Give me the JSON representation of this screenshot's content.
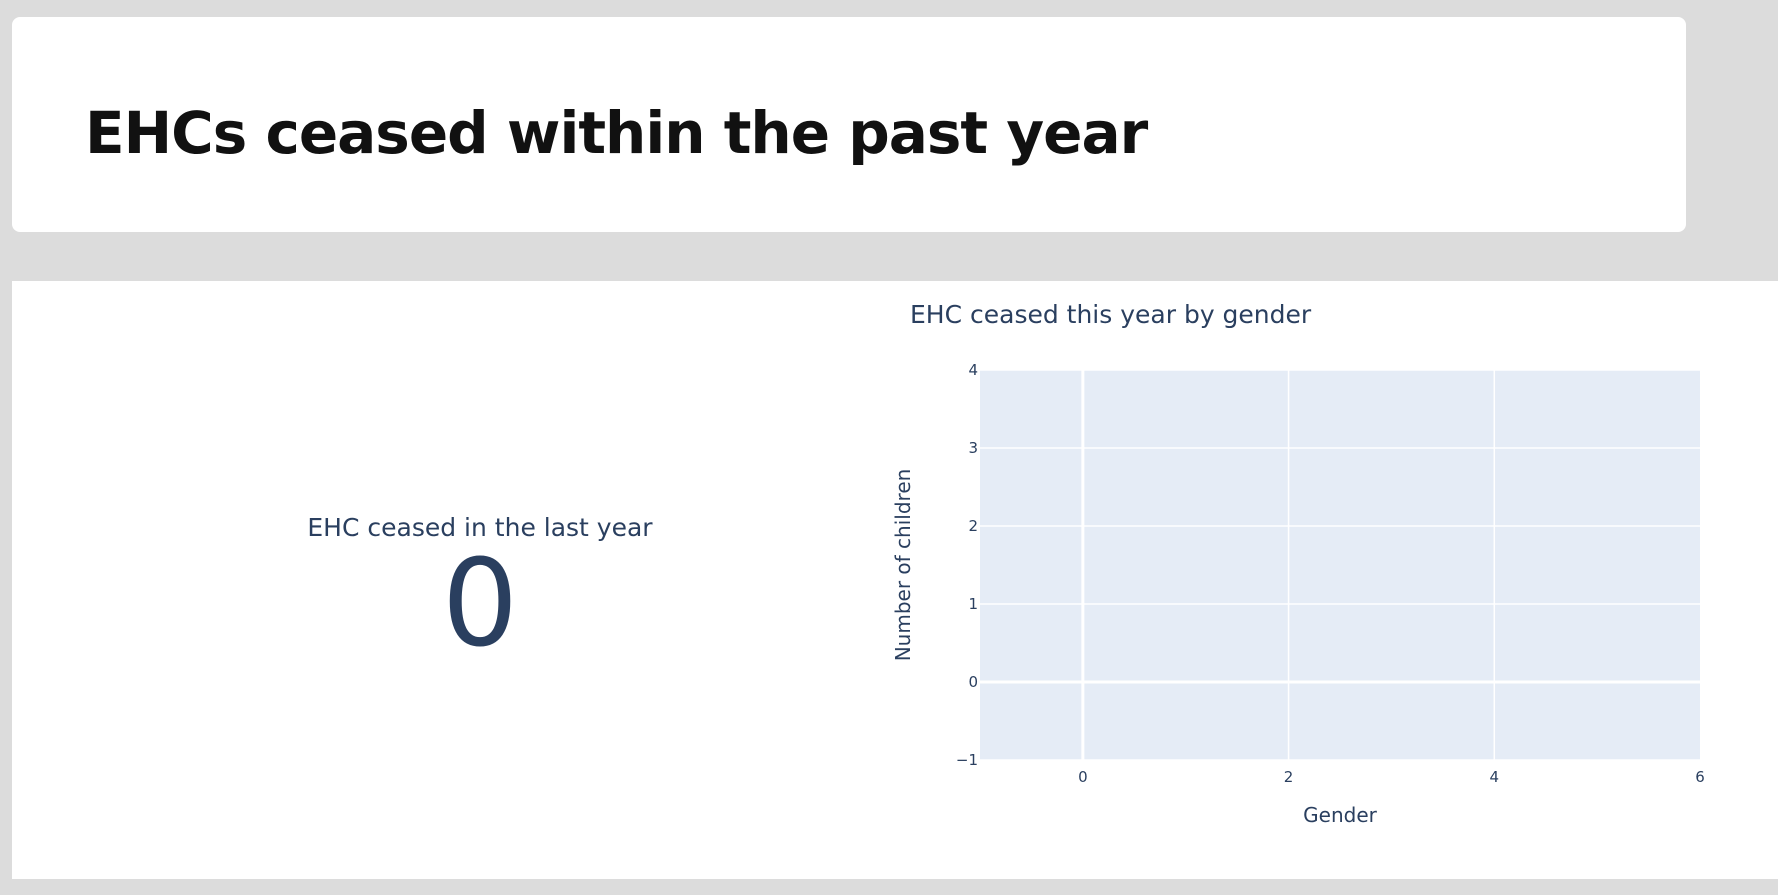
{
  "header": {
    "title": "EHCs ceased within the past year"
  },
  "kpi": {
    "label": "EHC ceased in the last year",
    "value": "0"
  },
  "colors": {
    "plot_background": "#e5ecf6",
    "grid": "#ffffff",
    "text": "#2a3f5f"
  },
  "chart_data": {
    "type": "bar",
    "title": "EHC ceased this year by gender",
    "xlabel": "Gender",
    "ylabel": "Number of children",
    "xlim": [
      -1,
      6
    ],
    "ylim": [
      -1,
      4
    ],
    "x_ticks": [
      0,
      2,
      4,
      6
    ],
    "y_ticks": [
      -1,
      0,
      1,
      2,
      3,
      4
    ],
    "x_tick_labels": [
      "0",
      "2",
      "4",
      "6"
    ],
    "y_tick_labels": [
      "−1",
      "0",
      "1",
      "2",
      "3",
      "4"
    ],
    "categories": [],
    "values": [],
    "grid": true,
    "legend": "none"
  }
}
